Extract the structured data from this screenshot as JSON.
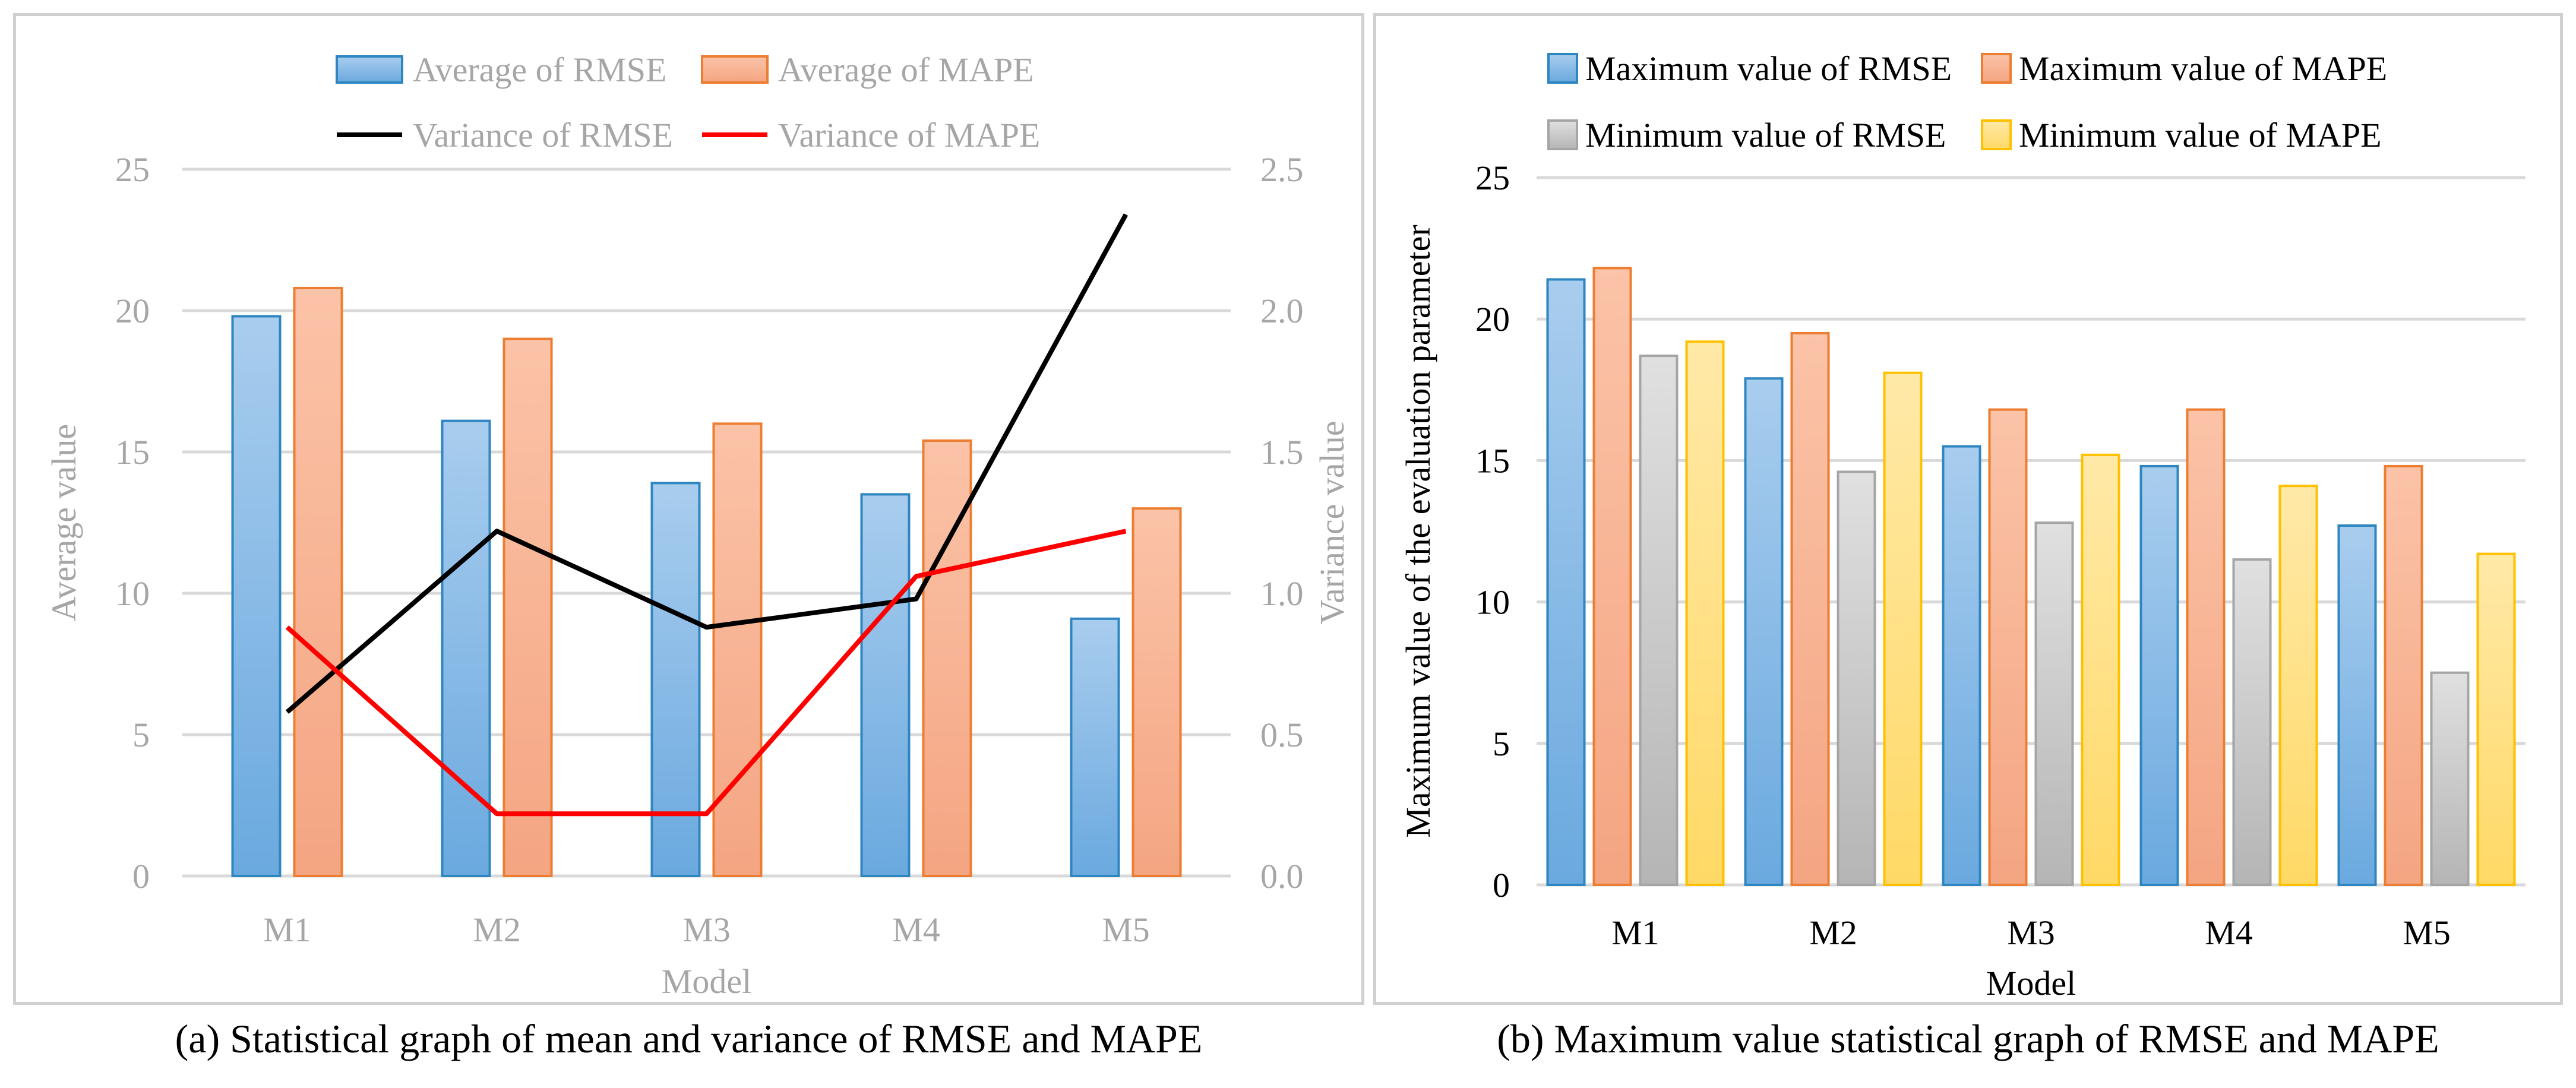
{
  "captions": {
    "a": "(a) Statistical graph of mean and variance of RMSE and MAPE",
    "b": "(b) Maximum value statistical graph of RMSE and MAPE"
  },
  "colors": {
    "rmse_blue": "#5b9bd5",
    "rmse_blue_edge": "#2e86c1",
    "mape_orange": "#f4a582",
    "mape_orange_edge": "#ed7d31",
    "gray": "#bfbfbf",
    "gray_edge": "#a5a5a5",
    "yellow": "#ffd966",
    "yellow_edge": "#ffc000",
    "line_black": "#000000",
    "line_red": "#ff0000",
    "grid": "#d9d9d9",
    "muted_text": "#a6a6a6"
  },
  "chart_data": [
    {
      "type": "bar",
      "title": "",
      "categories": [
        "M1",
        "M2",
        "M3",
        "M4",
        "M5"
      ],
      "xlabel": "Model",
      "ylabel": "Average value",
      "ylabel_right": "Variance value",
      "ylim": [
        0,
        25
      ],
      "y_ticks": [
        "0",
        "5",
        "10",
        "15",
        "20",
        "25"
      ],
      "ylim_right": [
        0,
        2.5
      ],
      "y_ticks_right": [
        "0.0",
        "0.5",
        "1.0",
        "1.5",
        "2.0",
        "2.5"
      ],
      "legend_position": "top",
      "series": [
        {
          "name": "Average of RMSE",
          "kind": "bar",
          "axis": "left",
          "values": [
            19.8,
            16.1,
            13.9,
            13.5,
            9.1
          ]
        },
        {
          "name": "Average of MAPE",
          "kind": "bar",
          "axis": "left",
          "values": [
            20.8,
            19.0,
            16.0,
            15.4,
            13.0
          ]
        },
        {
          "name": "Variance of RMSE",
          "kind": "line",
          "axis": "right",
          "values": [
            0.58,
            1.22,
            0.88,
            0.98,
            2.34
          ]
        },
        {
          "name": "Variance of MAPE",
          "kind": "line",
          "axis": "right",
          "values": [
            0.88,
            0.22,
            0.22,
            1.06,
            1.22
          ]
        }
      ]
    },
    {
      "type": "bar",
      "title": "",
      "categories": [
        "M1",
        "M2",
        "M3",
        "M4",
        "M5"
      ],
      "xlabel": "Model",
      "ylabel": "Maximum value of the evaluation parameter",
      "ylim": [
        0,
        25
      ],
      "y_ticks": [
        "0",
        "5",
        "10",
        "15",
        "20",
        "25"
      ],
      "legend_position": "top",
      "series": [
        {
          "name": "Maximum value of RMSE",
          "values": [
            21.4,
            17.9,
            15.5,
            14.8,
            12.7
          ]
        },
        {
          "name": "Maximum value of MAPE",
          "values": [
            21.8,
            19.5,
            16.8,
            16.8,
            14.8
          ]
        },
        {
          "name": "Minimum value of RMSE",
          "values": [
            18.7,
            14.6,
            12.8,
            11.5,
            7.5
          ]
        },
        {
          "name": "Minimum value of MAPE",
          "values": [
            19.2,
            18.1,
            15.2,
            14.1,
            11.7
          ]
        }
      ]
    }
  ]
}
